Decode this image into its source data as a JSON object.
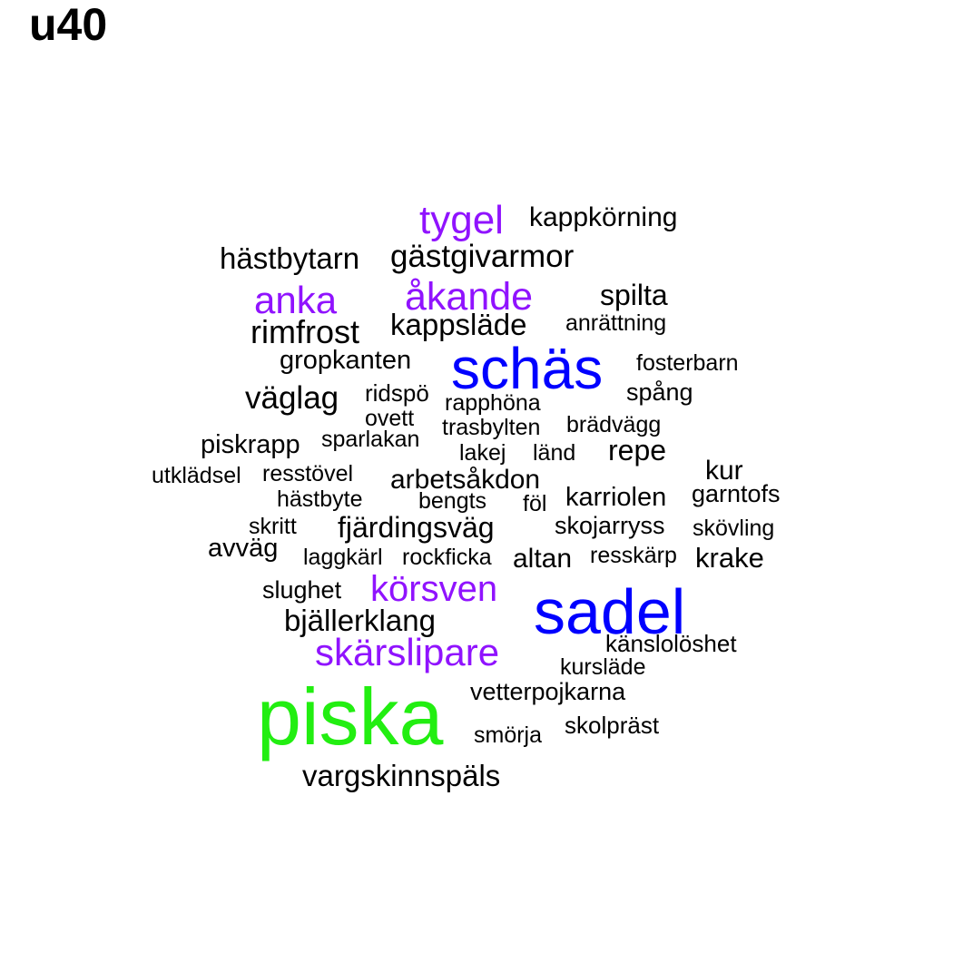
{
  "title": "u40",
  "colors": {
    "black": "#000000",
    "purple": "#9013FE",
    "blue": "#0000FF",
    "green": "#22EE11"
  },
  "words": [
    {
      "text": "tygel",
      "color": "purple",
      "weight": 3
    },
    {
      "text": "kappkörning",
      "color": "black",
      "weight": 1
    },
    {
      "text": "hästbytarn",
      "color": "black",
      "weight": 2
    },
    {
      "text": "gästgivarmor",
      "color": "black",
      "weight": 2
    },
    {
      "text": "anka",
      "color": "purple",
      "weight": 3
    },
    {
      "text": "åkande",
      "color": "purple",
      "weight": 3
    },
    {
      "text": "spilta",
      "color": "black",
      "weight": 2
    },
    {
      "text": "rimfrost",
      "color": "black",
      "weight": 2
    },
    {
      "text": "kappsläde",
      "color": "black",
      "weight": 2
    },
    {
      "text": "anrättning",
      "color": "black",
      "weight": 1
    },
    {
      "text": "gropkanten",
      "color": "black",
      "weight": 1
    },
    {
      "text": "schäs",
      "color": "blue",
      "weight": 5
    },
    {
      "text": "fosterbarn",
      "color": "black",
      "weight": 1
    },
    {
      "text": "väglag",
      "color": "black",
      "weight": 2
    },
    {
      "text": "ridspö",
      "color": "black",
      "weight": 1
    },
    {
      "text": "rapphöna",
      "color": "black",
      "weight": 1
    },
    {
      "text": "spång",
      "color": "black",
      "weight": 1
    },
    {
      "text": "ovett",
      "color": "black",
      "weight": 1
    },
    {
      "text": "trasbylten",
      "color": "black",
      "weight": 1
    },
    {
      "text": "brädvägg",
      "color": "black",
      "weight": 1
    },
    {
      "text": "piskrapp",
      "color": "black",
      "weight": 1
    },
    {
      "text": "sparlakan",
      "color": "black",
      "weight": 1
    },
    {
      "text": "lakej",
      "color": "black",
      "weight": 1
    },
    {
      "text": "länd",
      "color": "black",
      "weight": 1
    },
    {
      "text": "repe",
      "color": "black",
      "weight": 2
    },
    {
      "text": "utklädsel",
      "color": "black",
      "weight": 1
    },
    {
      "text": "resstövel",
      "color": "black",
      "weight": 1
    },
    {
      "text": "arbetsåkdon",
      "color": "black",
      "weight": 2
    },
    {
      "text": "kur",
      "color": "black",
      "weight": 2
    },
    {
      "text": "hästbyte",
      "color": "black",
      "weight": 1
    },
    {
      "text": "bengts",
      "color": "black",
      "weight": 1
    },
    {
      "text": "föl",
      "color": "black",
      "weight": 1
    },
    {
      "text": "karriolen",
      "color": "black",
      "weight": 2
    },
    {
      "text": "garntofs",
      "color": "black",
      "weight": 1
    },
    {
      "text": "skritt",
      "color": "black",
      "weight": 1
    },
    {
      "text": "fjärdingsväg",
      "color": "black",
      "weight": 2
    },
    {
      "text": "skojarryss",
      "color": "black",
      "weight": 1
    },
    {
      "text": "skövling",
      "color": "black",
      "weight": 1
    },
    {
      "text": "avväg",
      "color": "black",
      "weight": 1
    },
    {
      "text": "laggkärl",
      "color": "black",
      "weight": 1
    },
    {
      "text": "rockficka",
      "color": "black",
      "weight": 1
    },
    {
      "text": "altan",
      "color": "black",
      "weight": 2
    },
    {
      "text": "resskärp",
      "color": "black",
      "weight": 1
    },
    {
      "text": "krake",
      "color": "black",
      "weight": 2
    },
    {
      "text": "slughet",
      "color": "black",
      "weight": 1
    },
    {
      "text": "körsven",
      "color": "purple",
      "weight": 3
    },
    {
      "text": "sadel",
      "color": "blue",
      "weight": 5
    },
    {
      "text": "bjällerklang",
      "color": "black",
      "weight": 2
    },
    {
      "text": "känslolöshet",
      "color": "black",
      "weight": 1
    },
    {
      "text": "skärslipare",
      "color": "purple",
      "weight": 3
    },
    {
      "text": "kursläde",
      "color": "black",
      "weight": 1
    },
    {
      "text": "vetterpojkarna",
      "color": "black",
      "weight": 1
    },
    {
      "text": "piska",
      "color": "green",
      "weight": 6
    },
    {
      "text": "smörja",
      "color": "black",
      "weight": 1
    },
    {
      "text": "skolpräst",
      "color": "black",
      "weight": 1
    },
    {
      "text": "vargskinnspäls",
      "color": "black",
      "weight": 2
    }
  ]
}
